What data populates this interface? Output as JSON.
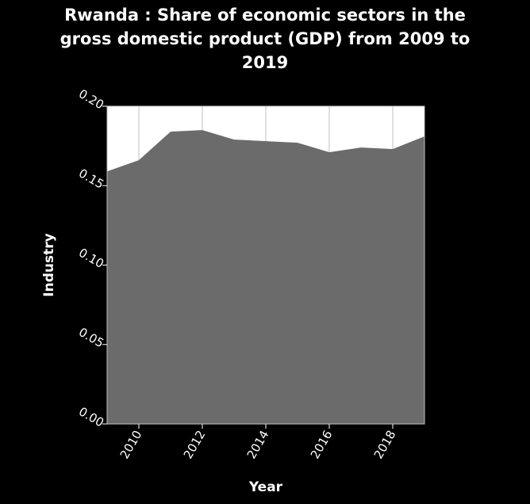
{
  "chart_data": {
    "type": "area",
    "title_lines": [
      "Rwanda : Share of economic sectors in the",
      "gross domestic product (GDP) from 2009 to",
      "2019"
    ],
    "xlabel": "Year",
    "ylabel": "Industry",
    "x": [
      2009,
      2010,
      2011,
      2012,
      2013,
      2014,
      2015,
      2016,
      2017,
      2018,
      2019
    ],
    "values": [
      0.159,
      0.166,
      0.184,
      0.185,
      0.179,
      0.178,
      0.177,
      0.171,
      0.174,
      0.173,
      0.181
    ],
    "xlim": [
      2009,
      2019
    ],
    "ylim": [
      0,
      0.2
    ],
    "x_ticks": [
      2010,
      2012,
      2014,
      2016,
      2018
    ],
    "x_tick_labels": [
      "2010",
      "2012",
      "2014",
      "2016",
      "2018"
    ],
    "y_ticks": [
      0,
      0.05,
      0.1,
      0.15,
      0.2
    ],
    "y_tick_labels": [
      "0.00",
      "0.05",
      "0.10",
      "0.15",
      "0.20"
    ],
    "grid": true,
    "colors": {
      "background": "#000000",
      "plot_background": "#ffffff",
      "area_fill": "#6b6b6b",
      "grid": "#bfbfbf",
      "text": "#ffffff"
    }
  }
}
